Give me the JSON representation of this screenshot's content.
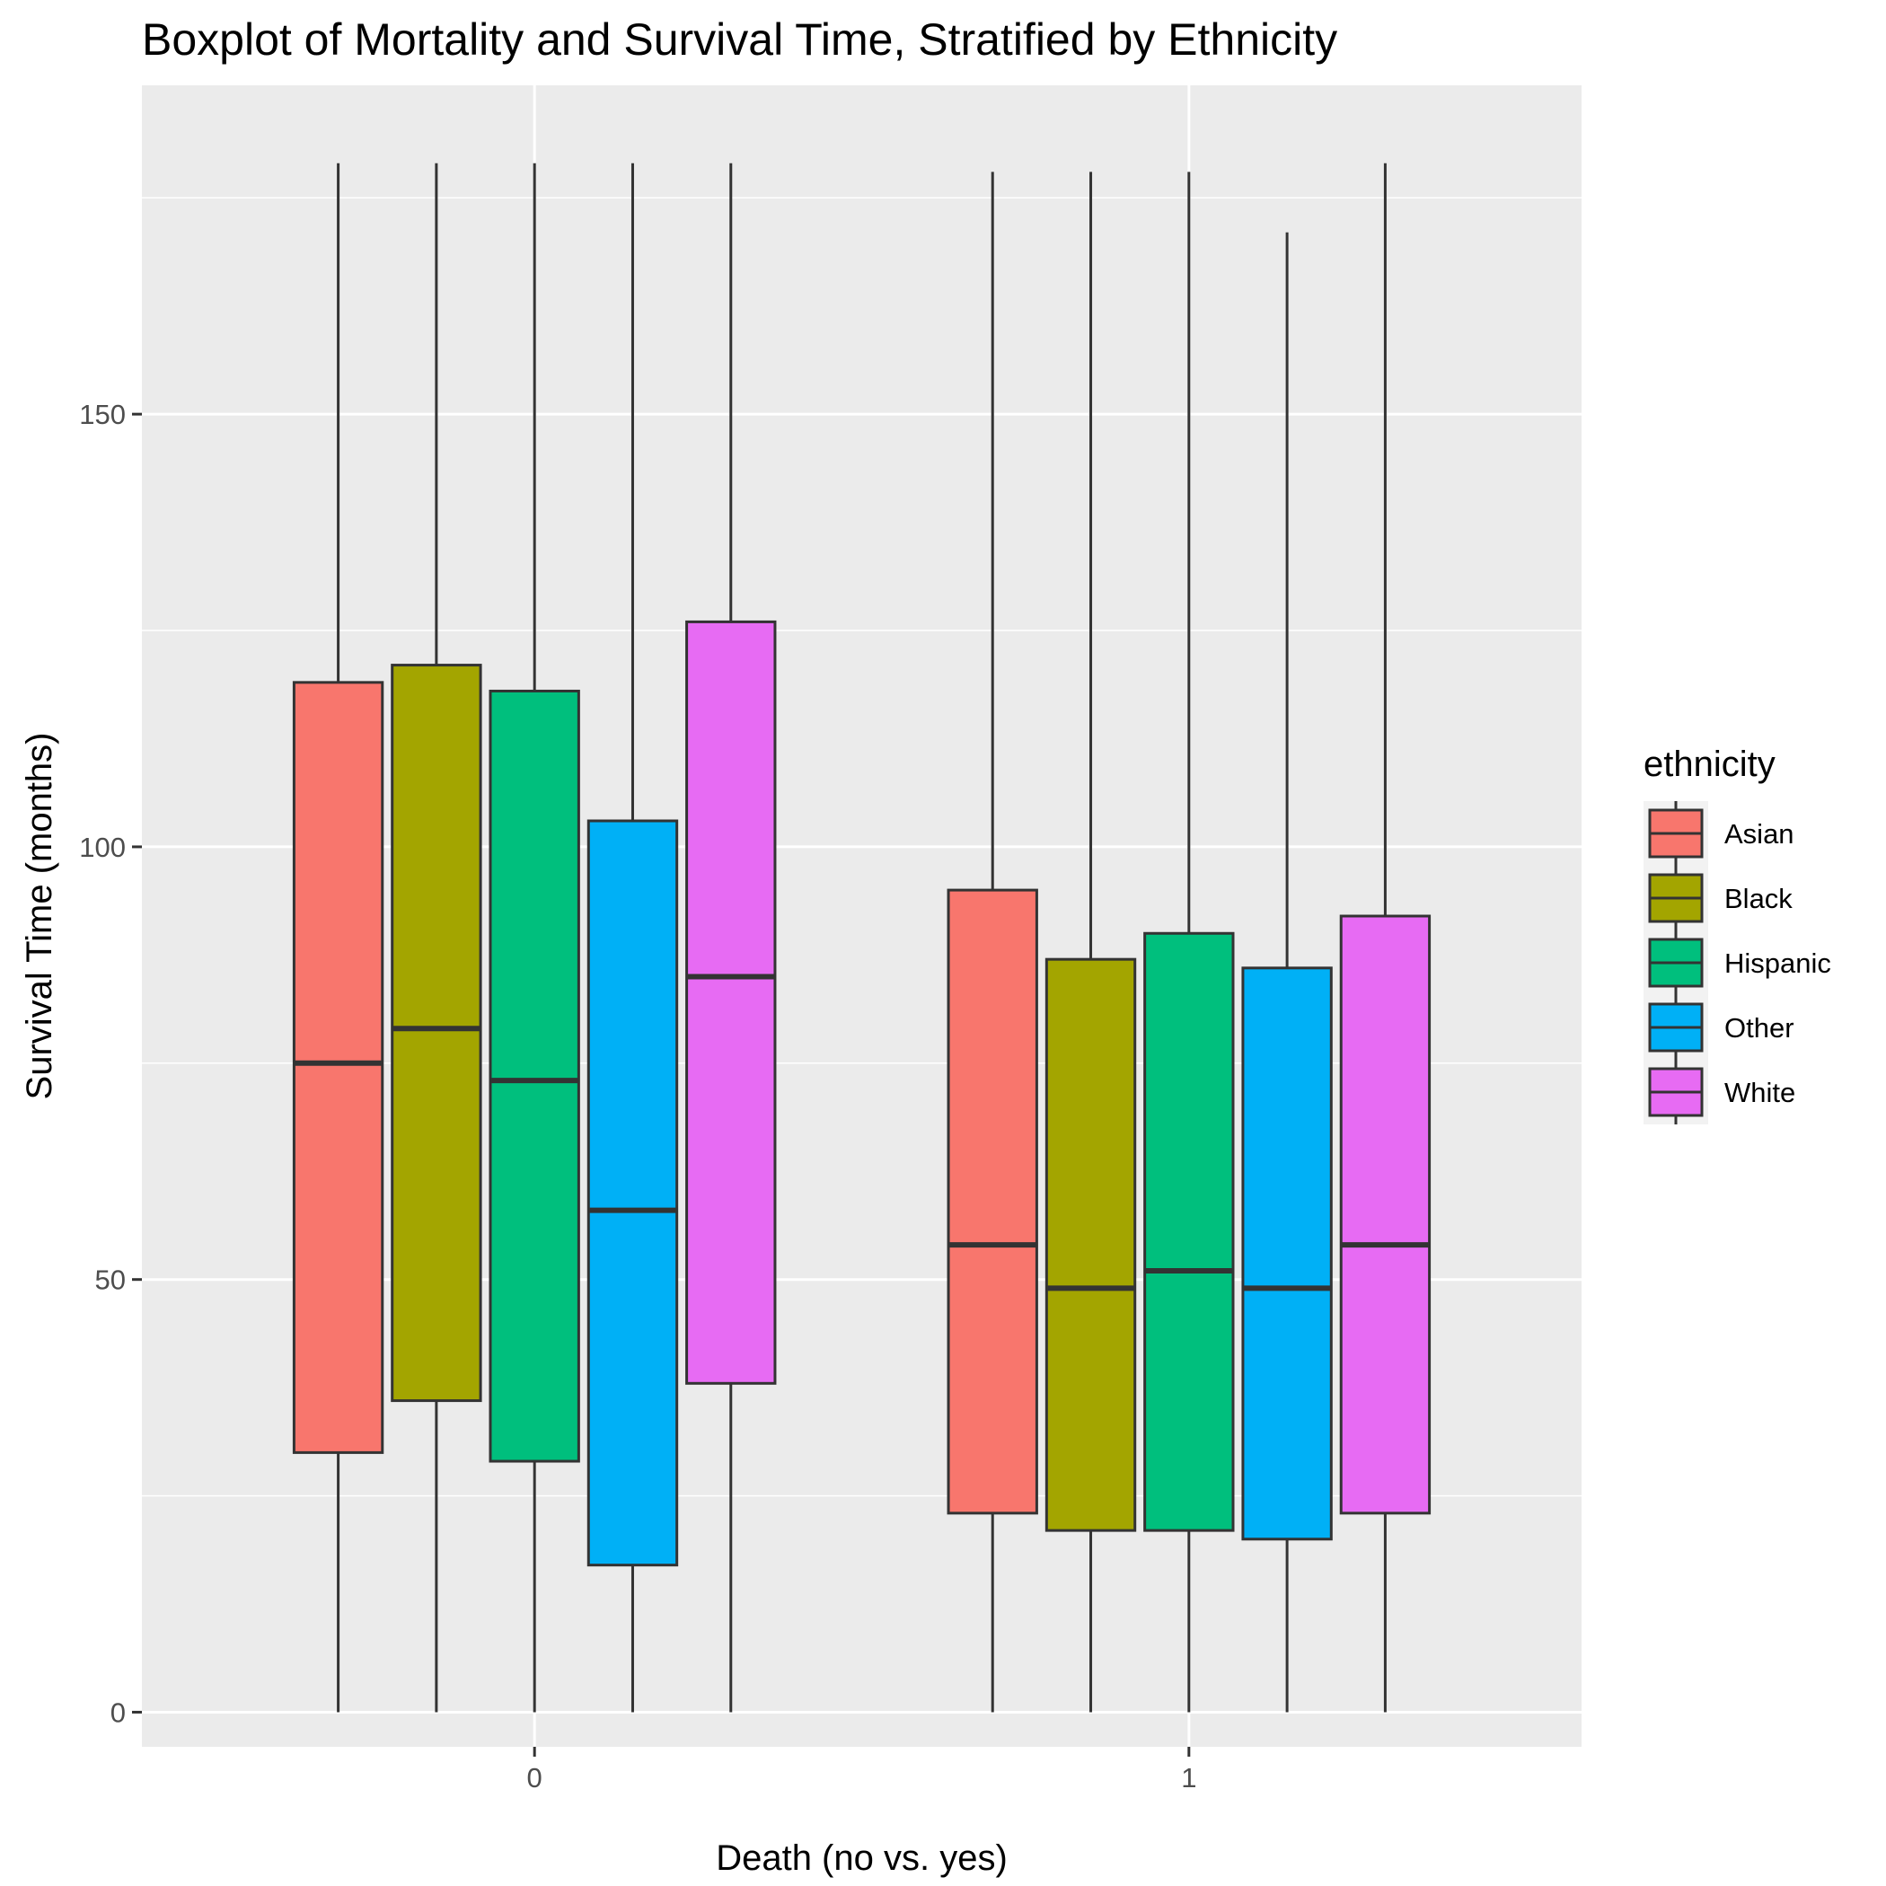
{
  "chart_data": {
    "type": "box",
    "title": "Boxplot of Mortality and Survival Time, Stratified by Ethnicity",
    "xlabel": "Death (no vs. yes)",
    "ylabel": "Survival Time (months)",
    "ylim": [
      -4,
      188
    ],
    "yticks": [
      0,
      50,
      100,
      150
    ],
    "categories": [
      "0",
      "1"
    ],
    "legend": {
      "title": "ethnicity",
      "position": "right"
    },
    "grid": true,
    "series": [
      {
        "name": "Asian",
        "color": "#F8766D",
        "boxes": [
          {
            "category": "0",
            "min": 0,
            "q1": 30,
            "median": 75,
            "q3": 119,
            "max": 179
          },
          {
            "category": "1",
            "min": 0,
            "q1": 23,
            "median": 54,
            "q3": 95,
            "max": 178
          }
        ]
      },
      {
        "name": "Black",
        "color": "#A3A500",
        "boxes": [
          {
            "category": "0",
            "min": 0,
            "q1": 36,
            "median": 79,
            "q3": 121,
            "max": 179
          },
          {
            "category": "1",
            "min": 0,
            "q1": 21,
            "median": 49,
            "q3": 87,
            "max": 178
          }
        ]
      },
      {
        "name": "Hispanic",
        "color": "#00BF7D",
        "boxes": [
          {
            "category": "0",
            "min": 0,
            "q1": 29,
            "median": 73,
            "q3": 118,
            "max": 179
          },
          {
            "category": "1",
            "min": 0,
            "q1": 21,
            "median": 51,
            "q3": 90,
            "max": 178
          }
        ]
      },
      {
        "name": "Other",
        "color": "#00B0F6",
        "boxes": [
          {
            "category": "0",
            "min": 0,
            "q1": 17,
            "median": 58,
            "q3": 103,
            "max": 179
          },
          {
            "category": "1",
            "min": 0,
            "q1": 20,
            "median": 49,
            "q3": 86,
            "max": 171
          }
        ]
      },
      {
        "name": "White",
        "color": "#E76BF3",
        "boxes": [
          {
            "category": "0",
            "min": 0,
            "q1": 38,
            "median": 85,
            "q3": 126,
            "max": 179
          },
          {
            "category": "1",
            "min": 0,
            "q1": 23,
            "median": 54,
            "q3": 92,
            "max": 179
          }
        ]
      }
    ]
  }
}
